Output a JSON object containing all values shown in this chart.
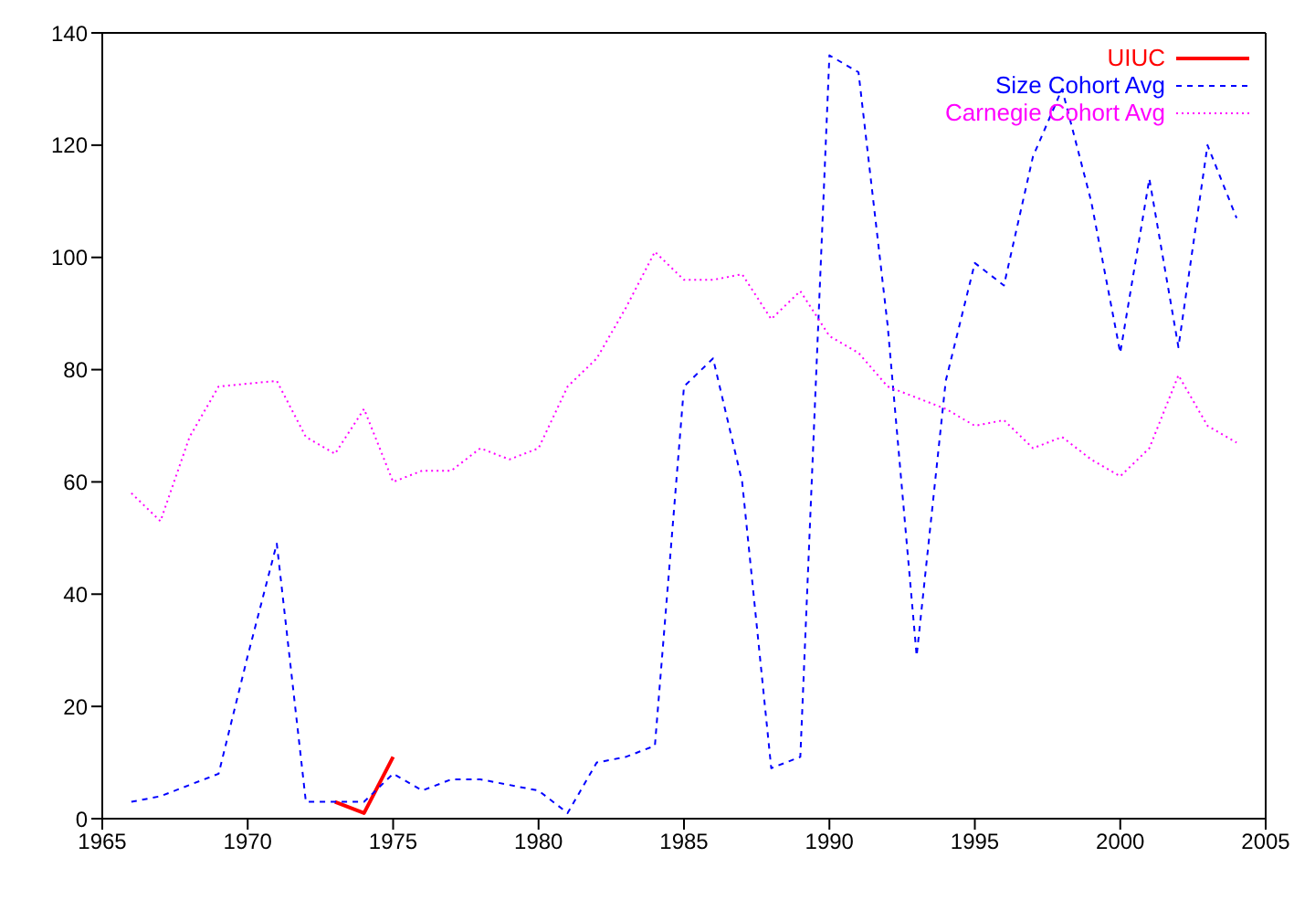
{
  "chart_data": {
    "type": "line",
    "xlim": [
      1965,
      2005
    ],
    "xticks": [
      1965,
      1970,
      1975,
      1980,
      1985,
      1990,
      1995,
      2000,
      2005
    ],
    "ylim": [
      0,
      140
    ],
    "yticks": [
      0,
      20,
      40,
      60,
      80,
      100,
      120,
      140
    ],
    "grid": false,
    "legend": "top right",
    "marker": "none",
    "series": [
      {
        "name": "UIUC",
        "color": "#ff0000",
        "line_style": "solid",
        "x": [
          1973,
          1974,
          1975
        ],
        "values": [
          3,
          1,
          11
        ]
      },
      {
        "name": "Size Cohort Avg",
        "color": "#0000ff",
        "line_style": "dashed",
        "x": [
          1966,
          1967,
          1968,
          1969,
          1970,
          1971,
          1972,
          1973,
          1974,
          1975,
          1976,
          1977,
          1978,
          1979,
          1980,
          1981,
          1982,
          1983,
          1984,
          1985,
          1986,
          1987,
          1988,
          1989,
          1990,
          1991,
          1992,
          1993,
          1994,
          1995,
          1996,
          1997,
          1998,
          1999,
          2000,
          2001,
          2002,
          2003,
          2004
        ],
        "values": [
          3,
          4,
          6,
          8,
          29,
          49,
          3,
          3,
          3,
          8,
          5,
          7,
          7,
          6,
          5,
          1,
          10,
          11,
          13,
          77,
          82,
          60,
          9,
          11,
          136,
          133,
          88,
          29,
          78,
          99,
          95,
          118,
          130,
          110,
          83,
          114,
          84,
          120,
          107
        ]
      },
      {
        "name": "Carnegie Cohort Avg",
        "color": "#ff00ff",
        "line_style": "dotted",
        "x": [
          1966,
          1967,
          1968,
          1969,
          1970,
          1971,
          1972,
          1973,
          1974,
          1975,
          1976,
          1977,
          1978,
          1979,
          1980,
          1981,
          1982,
          1983,
          1984,
          1985,
          1986,
          1987,
          1988,
          1989,
          1990,
          1991,
          1992,
          1993,
          1994,
          1995,
          1996,
          1997,
          1998,
          1999,
          2000,
          2001,
          2002,
          2003,
          2004
        ],
        "values": [
          58,
          53,
          68,
          77,
          77.5,
          78,
          68,
          65,
          73,
          60,
          62,
          62,
          66,
          64,
          66,
          77,
          82,
          91,
          101,
          96,
          96,
          97,
          89,
          94,
          86,
          83,
          77,
          75,
          73,
          70,
          71,
          66,
          68,
          64,
          61,
          66,
          79,
          70,
          67
        ]
      }
    ]
  }
}
